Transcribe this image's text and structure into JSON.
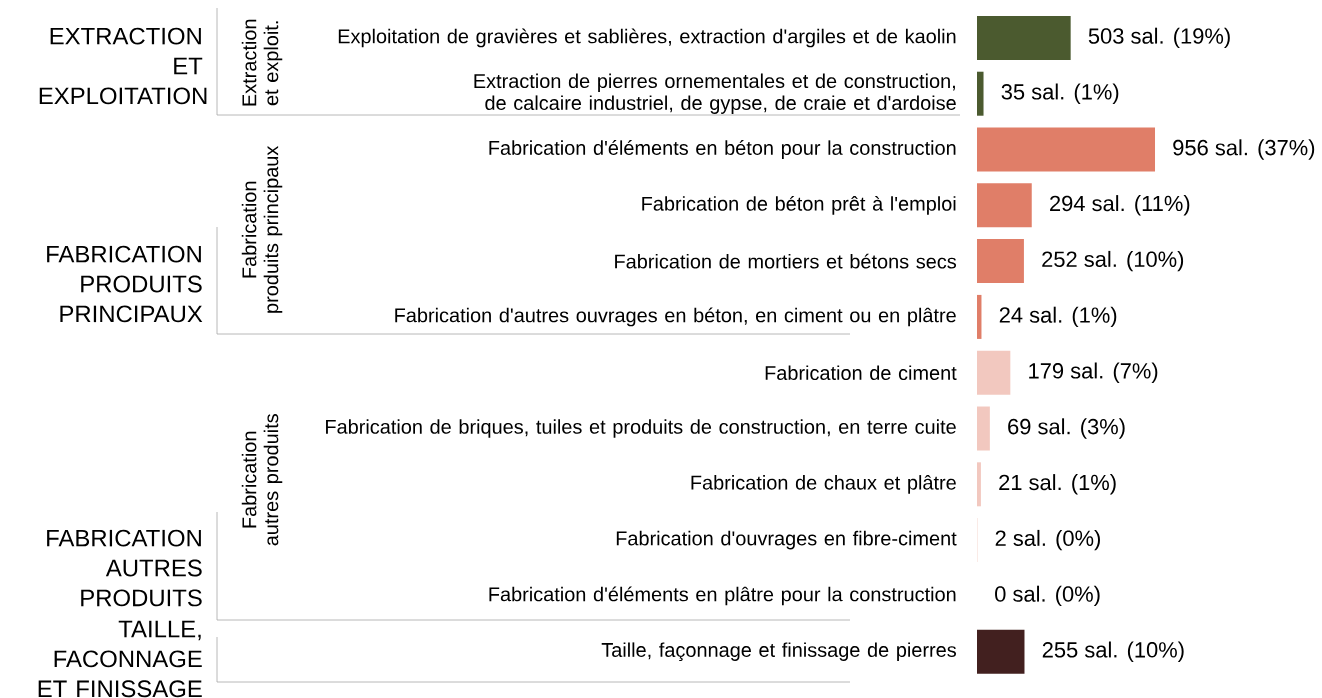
{
  "chart_data": {
    "type": "bar",
    "orientation": "horizontal",
    "categories": [
      "Exploitation de gravières et sablières, extraction d'argiles et de kaolin",
      "Extraction de pierres ornementales et de construction, de calcaire industriel, de gypse, de craie et d'ardoise",
      "Fabrication d'éléments en béton pour la construction",
      "Fabrication de béton prêt à l'emploi",
      "Fabrication de mortiers et bétons secs",
      "Fabrication d'autres ouvrages en béton, en ciment ou en plâtre",
      "Fabrication de ciment",
      "Fabrication de briques, tuiles et produits de construction, en terre cuite",
      "Fabrication de chaux et plâtre",
      "Fabrication d'ouvrages en fibre-ciment",
      "Fabrication d'éléments en plâtre pour la construction",
      "Taille, façonnage et finissage de pierres"
    ],
    "values": [
      503,
      35,
      956,
      294,
      252,
      24,
      179,
      69,
      21,
      2,
      0,
      255
    ],
    "colors": [
      "#4b5a2f",
      "#4b5a2f",
      "#e07e68",
      "#e07e68",
      "#e07e68",
      "#e07e68",
      "#f2c8bf",
      "#f2c8bf",
      "#f2c8bf",
      "#f2c8bf",
      "#f2c8bf",
      "#42201f"
    ],
    "value_labels": [
      "503 sal. (19%)",
      "35 sal. (1%)",
      "956 sal. (37%)",
      "294 sal. (11%)",
      "252 sal. (10%)",
      "24 sal. (1%)",
      "179 sal. (7%)",
      "69 sal. (3%)",
      "21 sal. (1%)",
      "2 sal. (0%)",
      "0 sal. (0%)",
      "255 sal. (10%)"
    ],
    "annotations": [
      "EXTRACTION ET EXPLOITATION",
      "FABRICATION PRODUITS PRINCIPAUX",
      "FABRICATION AUTRES PRODUITS",
      "TAILLE, FACONNAGE ET FINISSAGE",
      "Extraction et exploit.",
      "Fabrication produits principaux",
      "Fabrication autres produits"
    ]
  }
}
